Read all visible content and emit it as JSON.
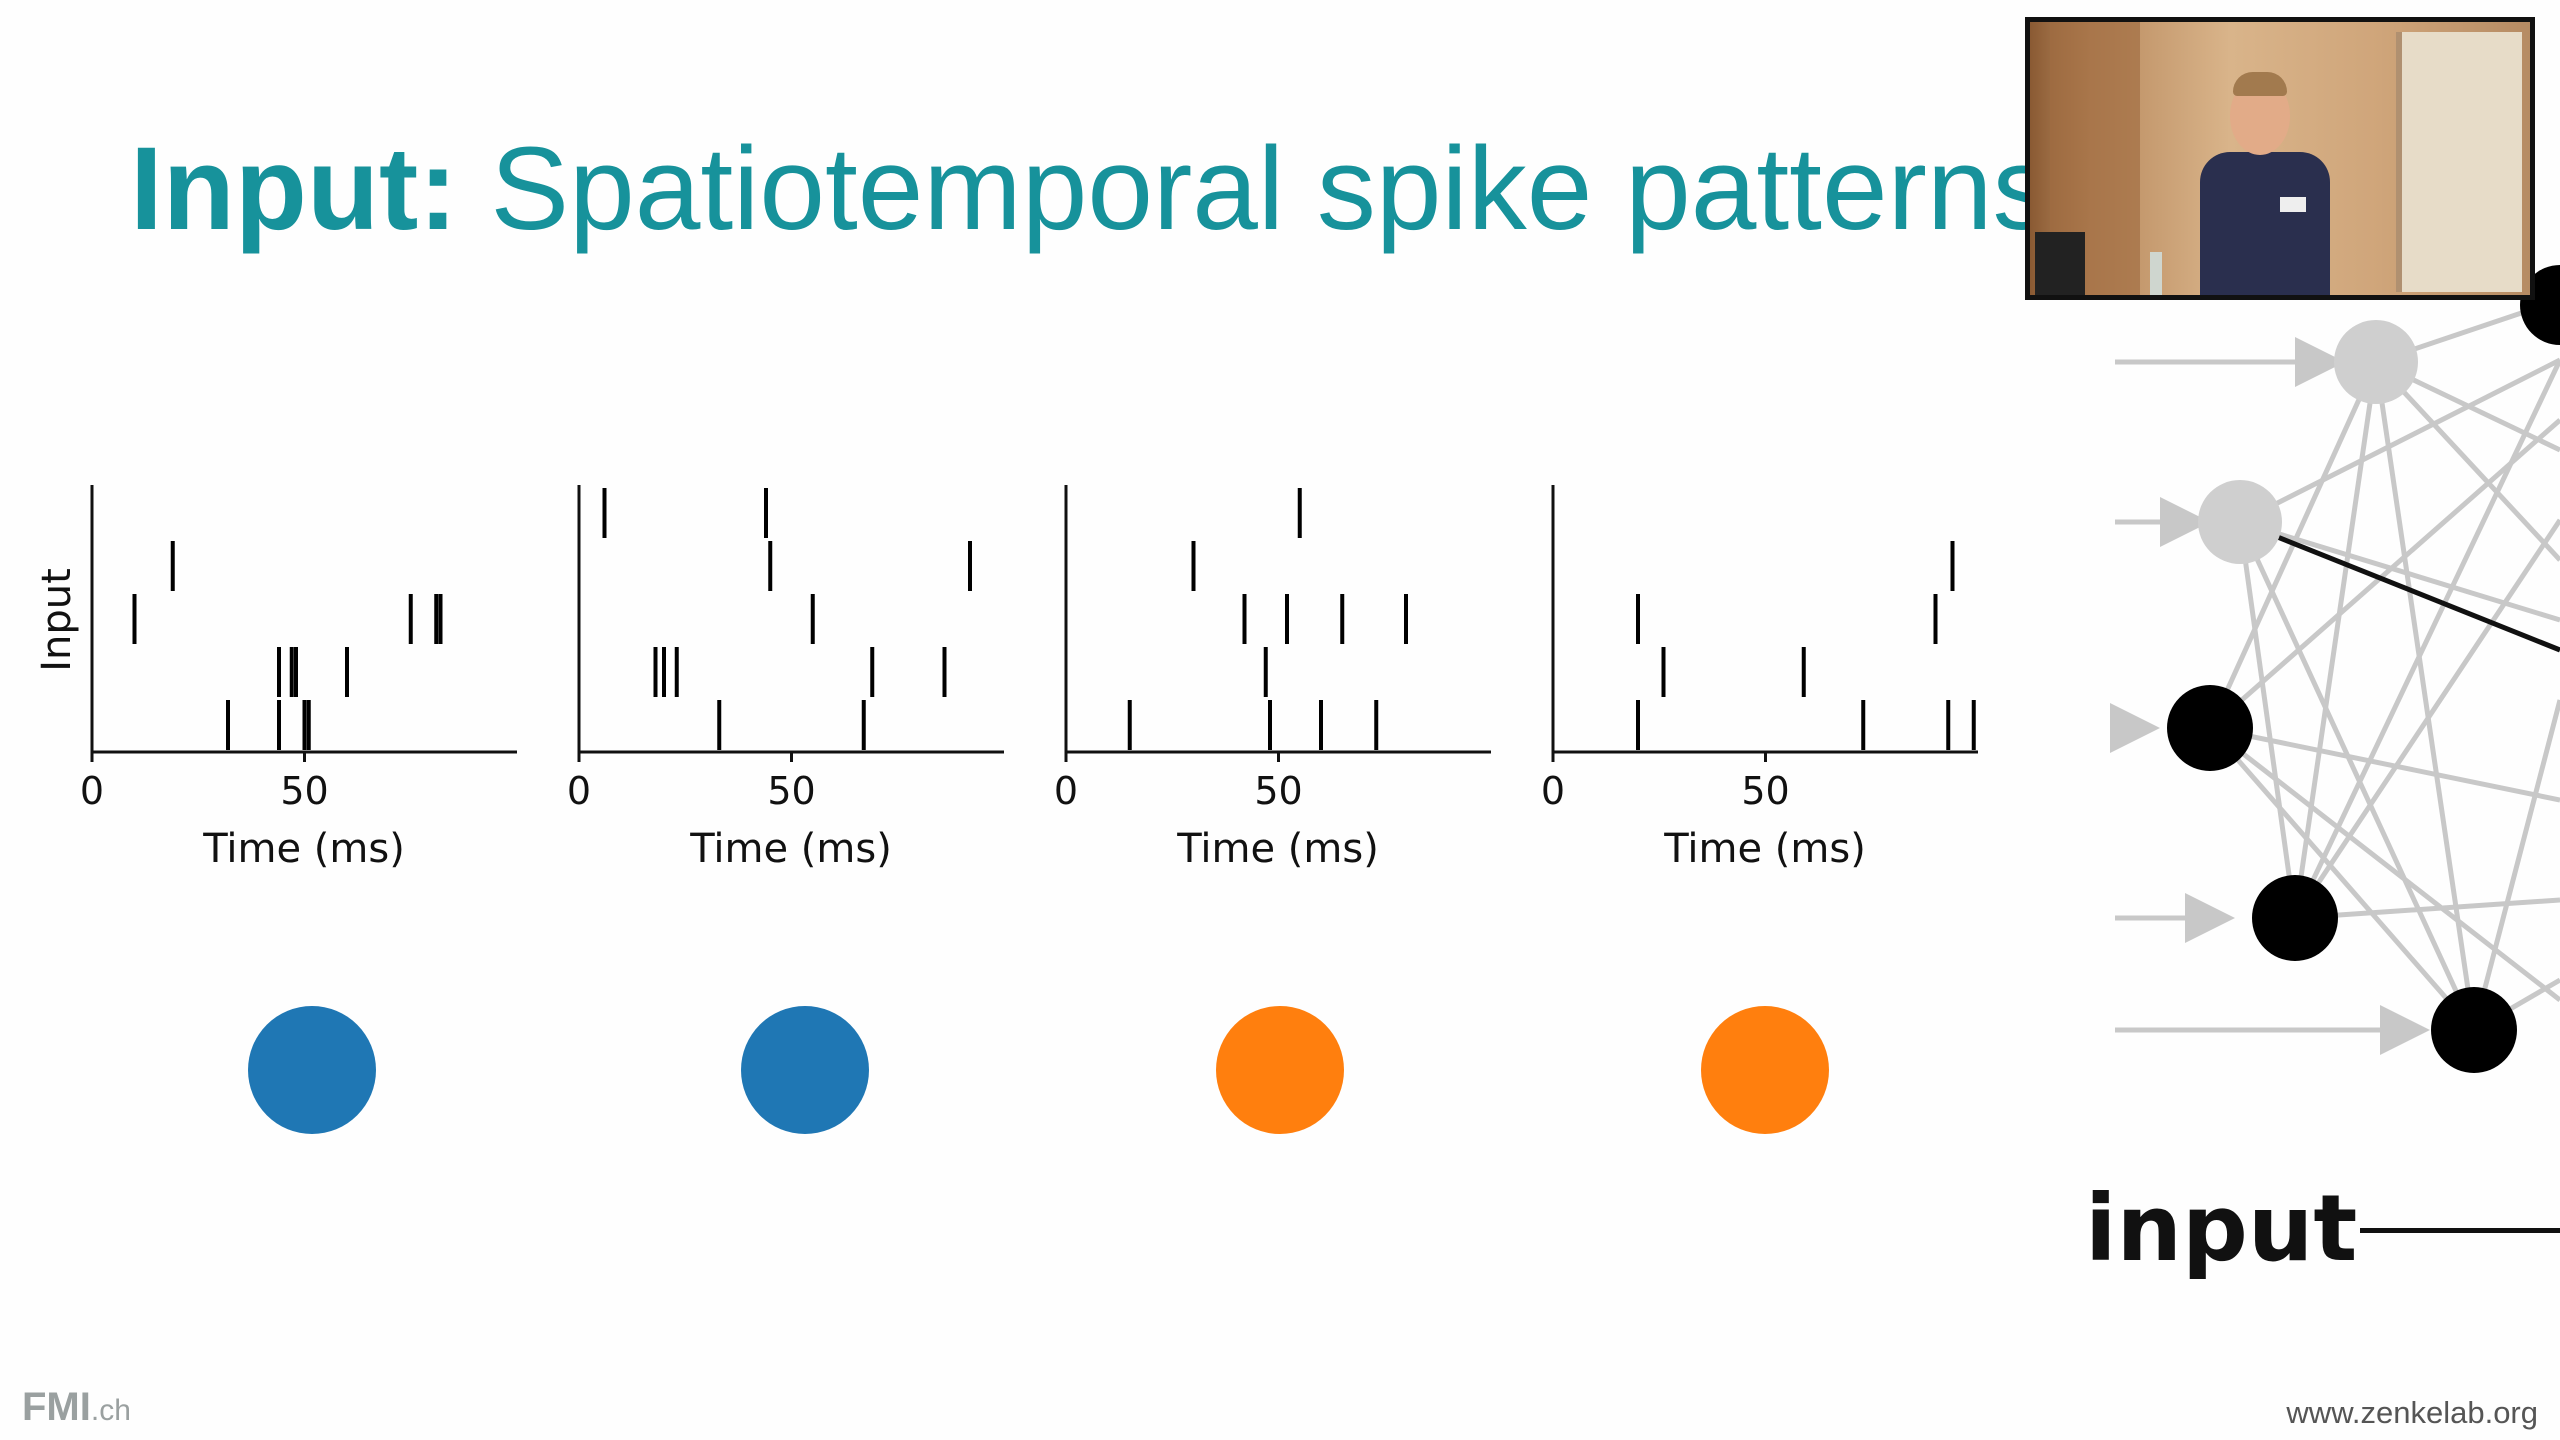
{
  "slide": {
    "title_bold": "Input:",
    "title_rest": "Spatiotemporal spike patterns",
    "footer_logo": "FMI",
    "footer_logo_suffix": ".ch",
    "footer_url": "www.zenkelab.org"
  },
  "network": {
    "label": "input"
  },
  "colors": {
    "title": "#17929b",
    "class_blue": "#1f77b4",
    "class_orange": "#ff7f0e"
  },
  "chart_data": [
    {
      "type": "scatter",
      "mark": "raster-tick",
      "xlabel": "Time (ms)",
      "ylabel": "Input",
      "xlim": [
        0,
        100
      ],
      "xticks": [
        0,
        50
      ],
      "rows": 5,
      "class_color": "#1f77b4",
      "spikes": [
        {
          "t": 19,
          "row": 4
        },
        {
          "t": 10,
          "row": 3
        },
        {
          "t": 75,
          "row": 3
        },
        {
          "t": 81,
          "row": 3
        },
        {
          "t": 82,
          "row": 3
        },
        {
          "t": 44,
          "row": 2
        },
        {
          "t": 47,
          "row": 2
        },
        {
          "t": 48,
          "row": 2
        },
        {
          "t": 60,
          "row": 2
        },
        {
          "t": 32,
          "row": 1
        },
        {
          "t": 44,
          "row": 1
        },
        {
          "t": 50,
          "row": 1
        },
        {
          "t": 51,
          "row": 1
        }
      ]
    },
    {
      "type": "scatter",
      "mark": "raster-tick",
      "xlabel": "Time (ms)",
      "ylabel": "",
      "xlim": [
        0,
        100
      ],
      "xticks": [
        0,
        50
      ],
      "rows": 5,
      "class_color": "#1f77b4",
      "spikes": [
        {
          "t": 6,
          "row": 5
        },
        {
          "t": 44,
          "row": 5
        },
        {
          "t": 45,
          "row": 4
        },
        {
          "t": 92,
          "row": 4
        },
        {
          "t": 55,
          "row": 3
        },
        {
          "t": 18,
          "row": 2
        },
        {
          "t": 20,
          "row": 2
        },
        {
          "t": 23,
          "row": 2
        },
        {
          "t": 69,
          "row": 2
        },
        {
          "t": 86,
          "row": 2
        },
        {
          "t": 33,
          "row": 1
        },
        {
          "t": 67,
          "row": 1
        }
      ]
    },
    {
      "type": "scatter",
      "mark": "raster-tick",
      "xlabel": "Time (ms)",
      "ylabel": "",
      "xlim": [
        0,
        100
      ],
      "xticks": [
        0,
        50
      ],
      "rows": 5,
      "class_color": "#ff7f0e",
      "spikes": [
        {
          "t": 55,
          "row": 5
        },
        {
          "t": 30,
          "row": 4
        },
        {
          "t": 42,
          "row": 3
        },
        {
          "t": 52,
          "row": 3
        },
        {
          "t": 65,
          "row": 3
        },
        {
          "t": 80,
          "row": 3
        },
        {
          "t": 47,
          "row": 2
        },
        {
          "t": 15,
          "row": 1
        },
        {
          "t": 48,
          "row": 1
        },
        {
          "t": 60,
          "row": 1
        },
        {
          "t": 73,
          "row": 1
        }
      ]
    },
    {
      "type": "scatter",
      "mark": "raster-tick",
      "xlabel": "Time (ms)",
      "ylabel": "",
      "xlim": [
        0,
        100
      ],
      "xticks": [
        0,
        50
      ],
      "rows": 5,
      "class_color": "#ff7f0e",
      "spikes": [
        {
          "t": 94,
          "row": 4
        },
        {
          "t": 20,
          "row": 3
        },
        {
          "t": 90,
          "row": 3
        },
        {
          "t": 26,
          "row": 2
        },
        {
          "t": 59,
          "row": 2
        },
        {
          "t": 20,
          "row": 1
        },
        {
          "t": 73,
          "row": 1
        },
        {
          "t": 93,
          "row": 1
        },
        {
          "t": 99,
          "row": 1
        }
      ]
    }
  ]
}
